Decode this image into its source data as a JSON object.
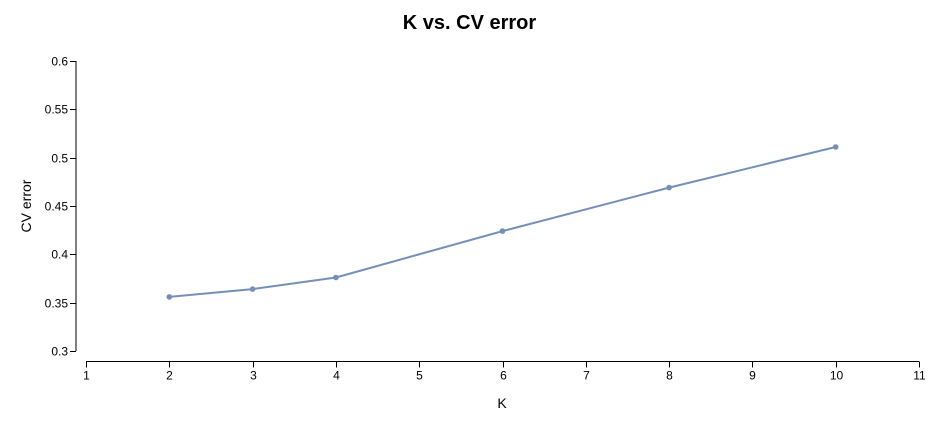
{
  "chart_data": {
    "type": "line",
    "title": "K vs. CV error",
    "xlabel": "K",
    "ylabel": "CV error",
    "xlim": [
      1,
      11
    ],
    "ylim": [
      0.3,
      0.6
    ],
    "x_ticks": [
      1,
      2,
      3,
      4,
      5,
      6,
      7,
      8,
      9,
      10,
      11
    ],
    "x_tick_labels": [
      "1",
      "2",
      "3",
      "4",
      "5",
      "6",
      "7",
      "8",
      "9",
      "10",
      "11"
    ],
    "y_ticks": [
      0.3,
      0.35,
      0.4,
      0.45,
      0.5,
      0.55,
      0.6
    ],
    "y_tick_labels": [
      "0.3",
      "0.35",
      "0.4",
      "0.45",
      "0.5",
      "0.55",
      "0.6"
    ],
    "grid": false,
    "legend": "none",
    "series": [
      {
        "x": [
          2,
          3,
          4,
          6,
          8,
          10
        ],
        "y": [
          0.356,
          0.364,
          0.376,
          0.424,
          0.469,
          0.511
        ],
        "color": "#7590b8",
        "markers": true
      }
    ]
  }
}
